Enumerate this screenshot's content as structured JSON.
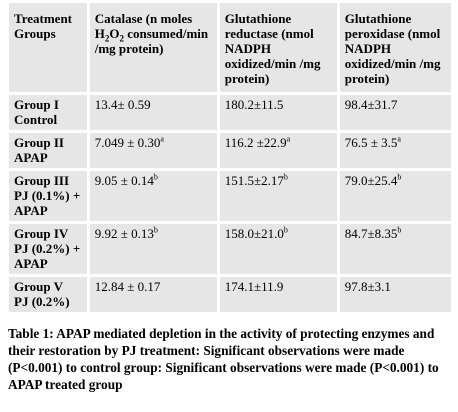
{
  "table": {
    "header": [
      [
        {
          "t": "Treatment Groups"
        }
      ],
      [
        {
          "t": "Catalase (n moles H"
        },
        {
          "sub": "2"
        },
        {
          "t": "O"
        },
        {
          "sub": "2"
        },
        {
          "t": " consumed/min /mg protein)"
        }
      ],
      [
        {
          "t": "Glutathione reductase (nmol NADPH oxidized/min /mg protein)"
        }
      ],
      [
        {
          "t": "Glutathione peroxidase (nmol NADPH oxidized/min /mg protein)"
        }
      ]
    ],
    "rows": [
      {
        "group": "Group I",
        "desc": "Control",
        "cells": [
          {
            "text": "13.4± 0.59"
          },
          {
            "text": "180.2±11.5"
          },
          {
            "text": "98.4±31.7"
          }
        ]
      },
      {
        "group": "Group II",
        "desc": "APAP",
        "cells": [
          {
            "text": "7.049 ± 0.30",
            "sup": "a"
          },
          {
            "text": "116.2 ±22.9",
            "sup": "a"
          },
          {
            "text": "76.5 ± 3.5",
            "sup": "a"
          }
        ]
      },
      {
        "group": "Group III",
        "desc": "PJ (0.1%) + APAP",
        "cells": [
          {
            "text": "9.05 ± 0.14",
            "sup": "b"
          },
          {
            "text": "151.5±2.17",
            "sup": "b"
          },
          {
            "text": "79.0±25.4",
            "sup": "b"
          }
        ]
      },
      {
        "group": "Group IV",
        "desc": "PJ (0.2%) + APAP",
        "cells": [
          {
            "text": "9.92 ± 0.13",
            "sup": "b"
          },
          {
            "text": "158.0±21.0",
            "sup": "b"
          },
          {
            "text": "84.7±8.35",
            "sup": "b"
          }
        ]
      },
      {
        "group": "Group V",
        "desc": "PJ (0.2%)",
        "cells": [
          {
            "text": "12.84 ± 0.17"
          },
          {
            "text": "174.1±11.9"
          },
          {
            "text": "97.8±3.1"
          }
        ]
      }
    ]
  },
  "caption": "Table 1: APAP mediated depletion in the activity of protecting enzymes and their restoration by PJ treatment: Significant observations were made (P<0.001) to control group: Significant observations were made (P<0.001) to APAP treated group"
}
